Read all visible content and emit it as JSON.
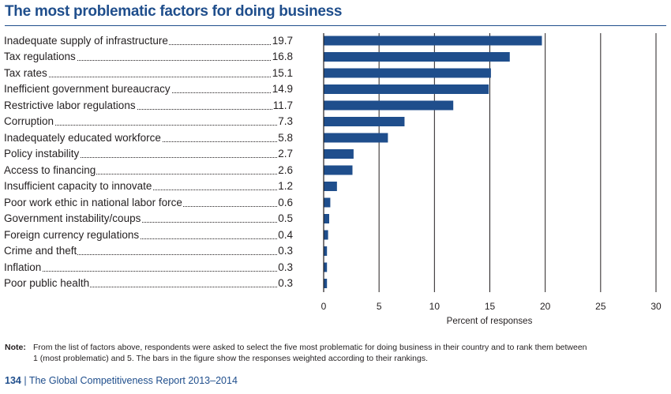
{
  "title": "The most problematic factors for doing business",
  "chart_data": {
    "type": "bar",
    "orientation": "horizontal",
    "categories": [
      "Inadequate supply of infrastructure",
      "Tax regulations",
      "Tax rates",
      "Inefficient government bureaucracy",
      "Restrictive labor regulations",
      "Corruption",
      "Inadequately educated workforce",
      "Policy instability",
      "Access to financing",
      "Insufficient capacity to innovate",
      "Poor work ethic in national labor force",
      "Government instability/coups",
      "Foreign currency regulations",
      "Crime and theft",
      "Inflation",
      "Poor public health"
    ],
    "values": [
      19.7,
      16.8,
      15.1,
      14.9,
      11.7,
      7.3,
      5.8,
      2.7,
      2.6,
      1.2,
      0.6,
      0.5,
      0.4,
      0.3,
      0.3,
      0.3
    ],
    "value_labels": [
      "19.7",
      "16.8",
      "15.1",
      "14.9",
      "11.7",
      "7.3",
      "5.8",
      "2.7",
      "2.6",
      "1.2",
      "0.6",
      "0.5",
      "0.4",
      "0.3",
      "0.3",
      "0.3"
    ],
    "xlabel": "Percent of responses",
    "xlim": [
      0,
      30
    ],
    "xticks": [
      "0",
      "5",
      "10",
      "15",
      "20",
      "25",
      "30"
    ],
    "grid": true,
    "bar_color": "#1f4e8c"
  },
  "note": {
    "label": "Note:",
    "line1": "From the list of factors above, respondents were asked to select the five most problematic for doing business in their country and to rank them between",
    "line2": "1 (most problematic) and 5. The bars in the figure show the responses weighted according to their rankings."
  },
  "footer": {
    "page": "134",
    "separator": "|",
    "text": "The Global Competitiveness Report 2013–2014"
  },
  "colors": {
    "accent": "#1f4e8c",
    "text": "#231f20"
  }
}
